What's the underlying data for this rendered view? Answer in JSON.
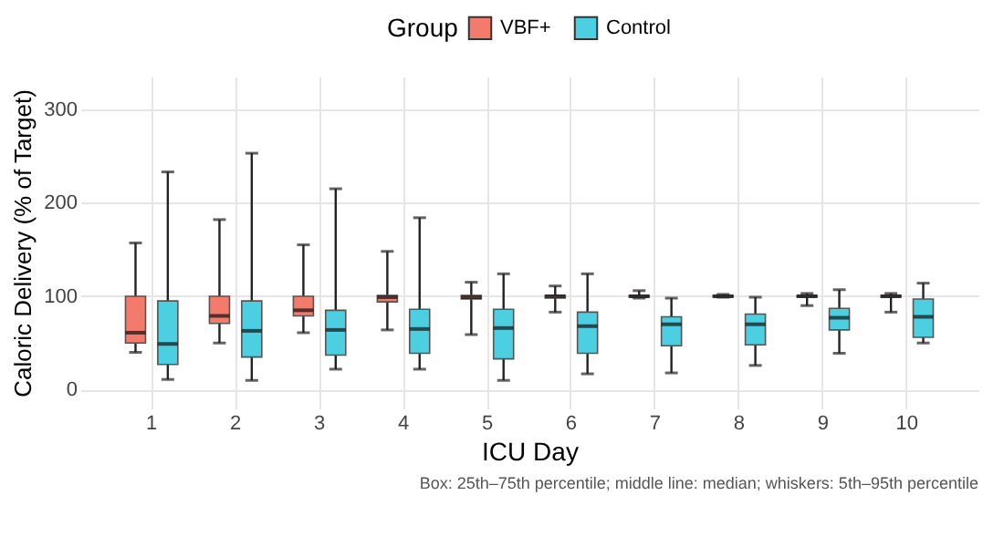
{
  "chart_data": {
    "type": "box",
    "xlabel": "ICU Day",
    "ylabel": "Caloric Delivery (% of Target)",
    "legend_title": "Group",
    "legend": "top",
    "grid": true,
    "categories": [
      "1",
      "2",
      "3",
      "4",
      "5",
      "6",
      "7",
      "8",
      "9",
      "10"
    ],
    "ylim": [
      -20,
      335
    ],
    "yticks": [
      0,
      100,
      200,
      300
    ],
    "series": [
      {
        "name": "VBF+",
        "color": "#f27b6b",
        "boxes": [
          {
            "low": 40,
            "q1": 50,
            "median": 61,
            "q3": 100,
            "high": 157
          },
          {
            "low": 50,
            "q1": 71,
            "median": 79,
            "q3": 100,
            "high": 182
          },
          {
            "low": 61,
            "q1": 79,
            "median": 85,
            "q3": 100,
            "high": 155
          },
          {
            "low": 64,
            "q1": 94,
            "median": 99,
            "q3": 101,
            "high": 148
          },
          {
            "low": 59,
            "q1": 97,
            "median": 99,
            "q3": 101,
            "high": 115
          },
          {
            "low": 83,
            "q1": 98,
            "median": 100,
            "q3": 101,
            "high": 111
          },
          {
            "low": 98,
            "q1": 99,
            "median": 100,
            "q3": 101,
            "high": 106
          },
          {
            "low": 99,
            "q1": 99,
            "median": 100,
            "q3": 101,
            "high": 102
          },
          {
            "low": 90,
            "q1": 99,
            "median": 100,
            "q3": 101,
            "high": 103
          },
          {
            "low": 83,
            "q1": 99,
            "median": 100,
            "q3": 101,
            "high": 103
          }
        ]
      },
      {
        "name": "Control",
        "color": "#4ccfe0",
        "boxes": [
          {
            "low": 11,
            "q1": 27,
            "median": 49,
            "q3": 95,
            "high": 233
          },
          {
            "low": 10,
            "q1": 35,
            "median": 63,
            "q3": 95,
            "high": 253
          },
          {
            "low": 22,
            "q1": 37,
            "median": 64,
            "q3": 85,
            "high": 215
          },
          {
            "low": 22,
            "q1": 39,
            "median": 65,
            "q3": 86,
            "high": 184
          },
          {
            "low": 10,
            "q1": 33,
            "median": 66,
            "q3": 86,
            "high": 124
          },
          {
            "low": 17,
            "q1": 39,
            "median": 68,
            "q3": 83,
            "high": 124
          },
          {
            "low": 18,
            "q1": 47,
            "median": 70,
            "q3": 78,
            "high": 98
          },
          {
            "low": 26,
            "q1": 48,
            "median": 70,
            "q3": 81,
            "high": 99
          },
          {
            "low": 39,
            "q1": 64,
            "median": 77,
            "q3": 87,
            "high": 107
          },
          {
            "low": 50,
            "q1": 56,
            "median": 78,
            "q3": 97,
            "high": 114
          }
        ]
      }
    ],
    "annotations": [
      "Box: 25th–75th percentile; middle line: median; whiskers: 5th–95th percentile"
    ]
  }
}
